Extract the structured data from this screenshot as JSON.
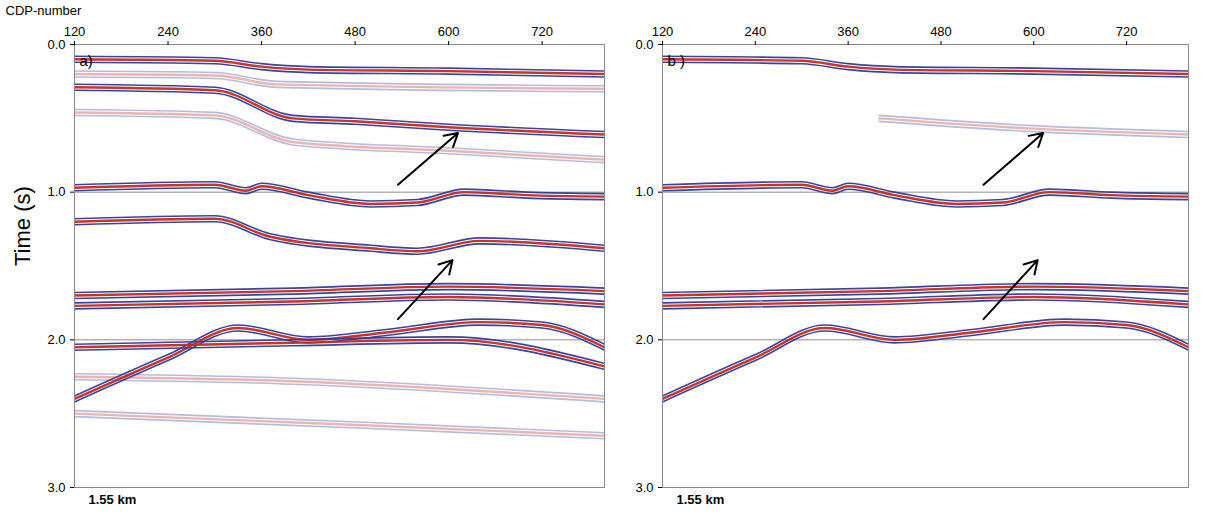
{
  "chart_data": [
    {
      "type": "seismic_section",
      "panel_label": "a)",
      "x_label": "CDP-number",
      "y_label": "Time (s)",
      "scale_bar": "1.55 km",
      "xlim": [
        120,
        800
      ],
      "xticks": [
        120,
        240,
        360,
        480,
        600,
        720
      ],
      "ylim": [
        0,
        3
      ],
      "yticks": [
        {
          "value": 0,
          "label": "0.0"
        },
        {
          "value": 1,
          "label": "1.0"
        },
        {
          "value": 2,
          "label": "2.0"
        },
        {
          "value": 3,
          "label": "3.0"
        }
      ],
      "grid": true,
      "series": [
        {
          "color": "#c8281e",
          "line_style": "solid",
          "x": [
            120,
            300,
            360,
            420,
            600,
            800
          ],
          "values": [
            0.1,
            0.11,
            0.15,
            0.17,
            0.18,
            0.2
          ]
        },
        {
          "color": "#c8281e",
          "line_style": "faint",
          "x": [
            120,
            300,
            380,
            800
          ],
          "values": [
            0.2,
            0.21,
            0.27,
            0.3
          ]
        },
        {
          "color": "#c8281e",
          "line_style": "solid",
          "x": [
            120,
            300,
            400,
            480,
            600,
            800
          ],
          "values": [
            0.29,
            0.31,
            0.5,
            0.52,
            0.56,
            0.61
          ]
        },
        {
          "color": "#c8281e",
          "line_style": "faint",
          "x": [
            120,
            300,
            400,
            600,
            800
          ],
          "values": [
            0.46,
            0.48,
            0.66,
            0.72,
            0.78
          ]
        },
        {
          "color": "#c8281e",
          "line_style": "solid",
          "x": [
            120,
            300,
            340,
            360,
            420,
            500,
            560,
            620,
            700,
            800
          ],
          "values": [
            0.97,
            0.95,
            0.99,
            0.96,
            1.02,
            1.08,
            1.07,
            1.0,
            1.02,
            1.03
          ]
        },
        {
          "color": "#c8281e",
          "line_style": "solid",
          "x": [
            120,
            300,
            370,
            500,
            560,
            640,
            800
          ],
          "values": [
            1.2,
            1.18,
            1.3,
            1.38,
            1.4,
            1.33,
            1.38
          ]
        },
        {
          "color": "#c8281e",
          "line_style": "solid",
          "x": [
            120,
            400,
            600,
            800
          ],
          "values": [
            1.7,
            1.67,
            1.64,
            1.67
          ]
        },
        {
          "color": "#c8281e",
          "line_style": "solid",
          "x": [
            120,
            400,
            600,
            800
          ],
          "values": [
            1.77,
            1.74,
            1.71,
            1.76
          ]
        },
        {
          "color": "#c8281e",
          "line_style": "solid",
          "x": [
            120,
            240,
            330,
            420,
            520,
            640,
            720,
            800
          ],
          "values": [
            2.4,
            2.12,
            1.92,
            2.0,
            1.95,
            1.88,
            1.9,
            2.05
          ]
        },
        {
          "color": "#c8281e",
          "line_style": "solid",
          "x": [
            120,
            400,
            600,
            800
          ],
          "values": [
            2.05,
            2.02,
            2.0,
            2.18
          ]
        },
        {
          "color": "#c8281e",
          "line_style": "faint",
          "x": [
            120,
            400,
            800
          ],
          "values": [
            2.25,
            2.28,
            2.4
          ]
        },
        {
          "color": "#c8281e",
          "line_style": "faint",
          "x": [
            120,
            500,
            800
          ],
          "values": [
            2.5,
            2.58,
            2.65
          ]
        }
      ],
      "arrows": [
        {
          "x1": 535,
          "y1": 0.95,
          "x2": 612,
          "y2": 0.6
        },
        {
          "x1": 535,
          "y1": 1.86,
          "x2": 605,
          "y2": 1.46
        }
      ]
    },
    {
      "type": "seismic_section",
      "panel_label": "b )",
      "scale_bar": "1.55 km",
      "xlim": [
        120,
        800
      ],
      "xticks": [
        120,
        240,
        360,
        480,
        600,
        720
      ],
      "ylim": [
        0,
        3
      ],
      "yticks": [
        {
          "value": 0,
          "label": "0.0"
        },
        {
          "value": 1,
          "label": "1.0"
        },
        {
          "value": 2,
          "label": "2.0"
        },
        {
          "value": 3,
          "label": "3.0"
        }
      ],
      "grid": true,
      "series": [
        {
          "color": "#c8281e",
          "line_style": "solid",
          "x": [
            120,
            300,
            360,
            420,
            600,
            800
          ],
          "values": [
            0.1,
            0.11,
            0.15,
            0.17,
            0.18,
            0.2
          ]
        },
        {
          "color": "#c8281e",
          "line_style": "faint",
          "x": [
            400,
            600,
            800
          ],
          "values": [
            0.5,
            0.57,
            0.61
          ]
        },
        {
          "color": "#c8281e",
          "line_style": "solid",
          "x": [
            120,
            300,
            340,
            360,
            420,
            500,
            560,
            620,
            700,
            800
          ],
          "values": [
            0.97,
            0.95,
            0.99,
            0.96,
            1.02,
            1.08,
            1.07,
            1.0,
            1.02,
            1.03
          ]
        },
        {
          "color": "#c8281e",
          "line_style": "solid",
          "x": [
            120,
            400,
            600,
            800
          ],
          "values": [
            1.7,
            1.67,
            1.64,
            1.67
          ]
        },
        {
          "color": "#c8281e",
          "line_style": "solid",
          "x": [
            120,
            400,
            600,
            800
          ],
          "values": [
            1.77,
            1.74,
            1.71,
            1.76
          ]
        },
        {
          "color": "#c8281e",
          "line_style": "solid",
          "x": [
            120,
            240,
            330,
            420,
            520,
            640,
            720,
            800
          ],
          "values": [
            2.4,
            2.12,
            1.92,
            2.0,
            1.95,
            1.88,
            1.9,
            2.05
          ]
        }
      ],
      "arrows": [
        {
          "x1": 535,
          "y1": 0.95,
          "x2": 612,
          "y2": 0.6
        },
        {
          "x1": 535,
          "y1": 1.86,
          "x2": 605,
          "y2": 1.46
        }
      ]
    }
  ]
}
